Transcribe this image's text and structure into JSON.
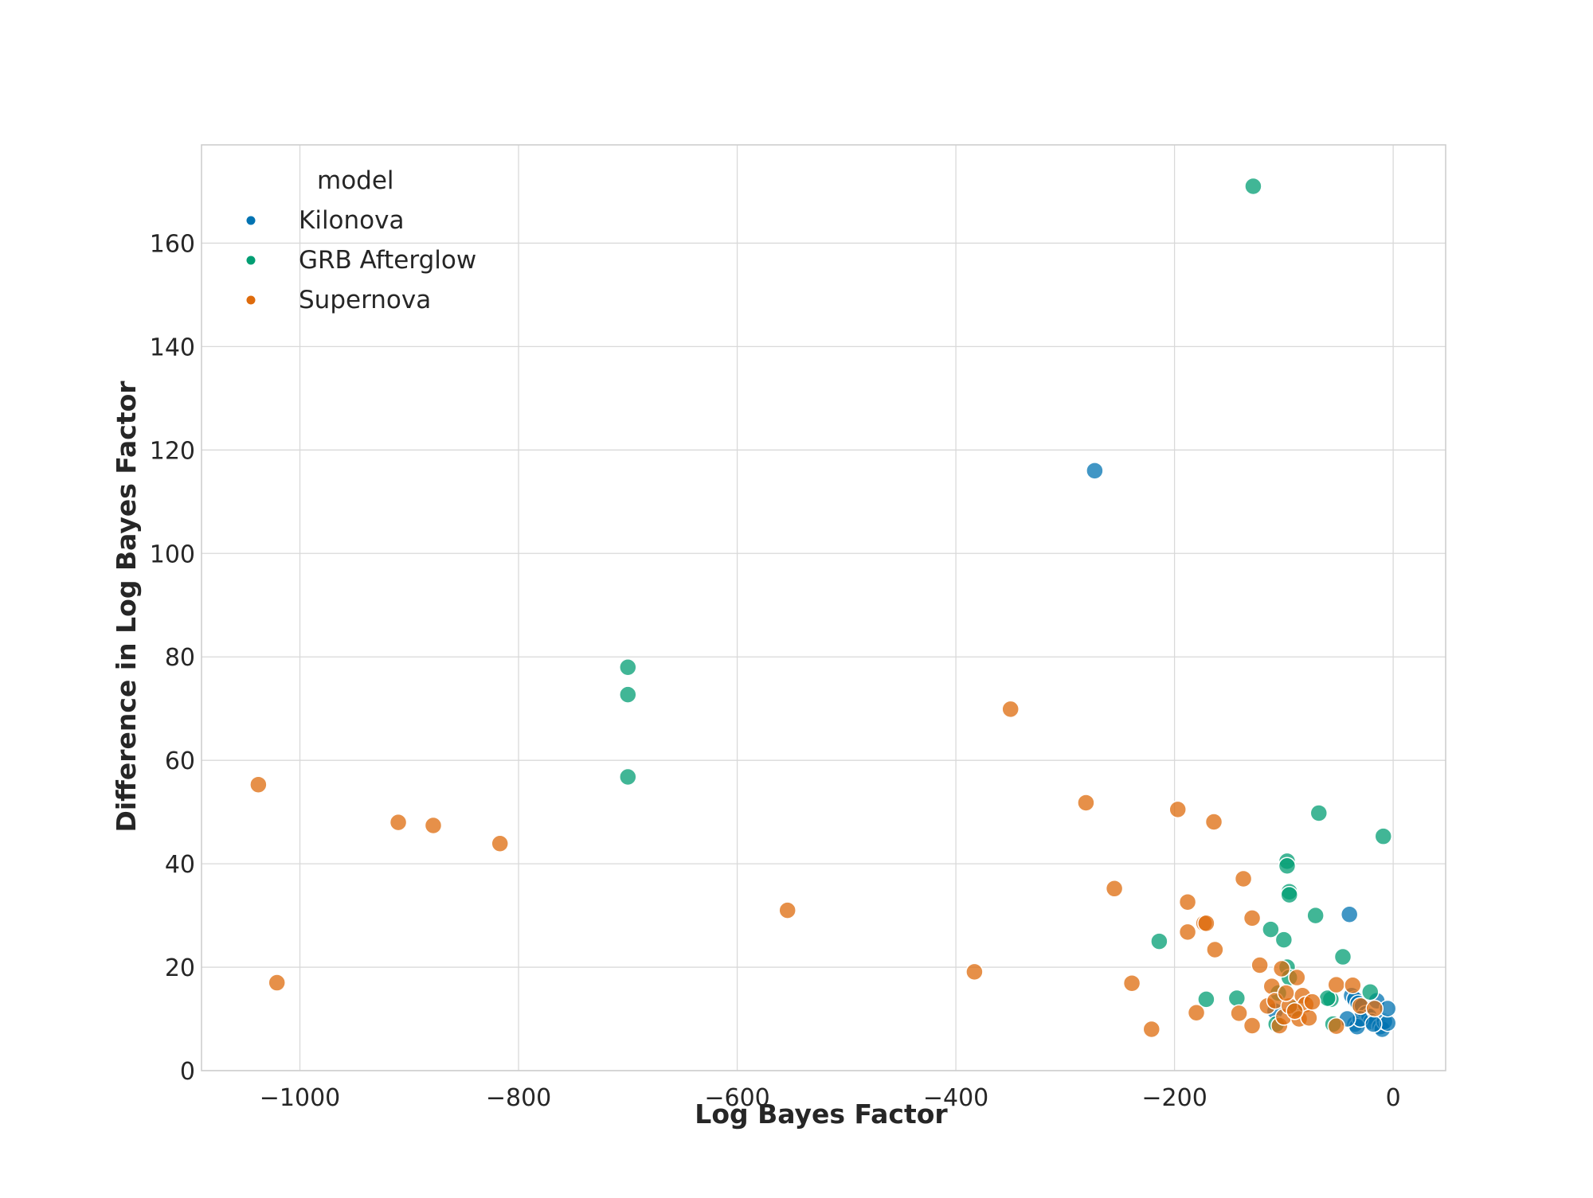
{
  "chart_data": {
    "type": "scatter",
    "title": "",
    "xlabel": "Log Bayes Factor",
    "ylabel": "Difference in Log Bayes Factor",
    "xlim": [
      -1090,
      48
    ],
    "ylim": [
      0,
      179
    ],
    "xticks": [
      -1000,
      -800,
      -600,
      -400,
      -200,
      0
    ],
    "xtick_labels": [
      "−1000",
      "−800",
      "−600",
      "−400",
      "−200",
      "0"
    ],
    "yticks": [
      0,
      20,
      40,
      60,
      80,
      100,
      120,
      140,
      160
    ],
    "ytick_labels": [
      "0",
      "20",
      "40",
      "60",
      "80",
      "100",
      "120",
      "140",
      "160"
    ],
    "grid": true,
    "legend": {
      "title": "model",
      "position": "top-left"
    },
    "series": [
      {
        "name": "Kilonova",
        "color": "#0173b2",
        "points": [
          [
            -273,
            116
          ],
          [
            -40,
            30.2
          ],
          [
            -38,
            14.5
          ],
          [
            -35,
            13.8
          ],
          [
            -32,
            13
          ],
          [
            -28,
            12.5
          ],
          [
            -25,
            11
          ],
          [
            -22,
            10.5
          ],
          [
            -20,
            9.5
          ],
          [
            -15,
            13.5
          ],
          [
            -12,
            8.5
          ],
          [
            -10,
            8
          ],
          [
            -8,
            9.5
          ],
          [
            -5,
            9.2
          ],
          [
            -5,
            12
          ],
          [
            -35,
            9
          ],
          [
            -33,
            8.5
          ],
          [
            -108,
            11.5
          ],
          [
            -30,
            10
          ],
          [
            -18,
            9
          ],
          [
            -42,
            10
          ]
        ]
      },
      {
        "name": "GRB Afterglow",
        "color": "#029e73",
        "points": [
          [
            -128,
            171
          ],
          [
            -700,
            78
          ],
          [
            -700,
            72.7
          ],
          [
            -700,
            56.8
          ],
          [
            -68,
            49.8
          ],
          [
            -9,
            45.3
          ],
          [
            -97,
            40.5
          ],
          [
            -97,
            39.6
          ],
          [
            -95,
            34.6
          ],
          [
            -95,
            34
          ],
          [
            -71,
            30
          ],
          [
            -112,
            27.3
          ],
          [
            -100,
            25.3
          ],
          [
            -214,
            25
          ],
          [
            -46,
            22
          ],
          [
            -97,
            20
          ],
          [
            -105,
            15
          ],
          [
            -57,
            13.8
          ],
          [
            -171,
            13.8
          ],
          [
            -143,
            14
          ],
          [
            -21,
            15.2
          ],
          [
            -90,
            12
          ],
          [
            -107,
            9
          ],
          [
            -55,
            9
          ],
          [
            -95,
            18
          ],
          [
            -60,
            14
          ]
        ]
      },
      {
        "name": "Supernova",
        "color": "#de6b0c",
        "points": [
          [
            -1038,
            55.3
          ],
          [
            -1021,
            17
          ],
          [
            -910,
            48
          ],
          [
            -878,
            47.4
          ],
          [
            -817,
            43.9
          ],
          [
            -554,
            31
          ],
          [
            -383,
            19.1
          ],
          [
            -350,
            69.9
          ],
          [
            -281,
            51.8
          ],
          [
            -255,
            35.2
          ],
          [
            -239,
            16.9
          ],
          [
            -221,
            8
          ],
          [
            -197,
            50.5
          ],
          [
            -188,
            32.6
          ],
          [
            -188,
            26.8
          ],
          [
            -180,
            11.2
          ],
          [
            -173,
            28.5
          ],
          [
            -171,
            28.5
          ],
          [
            -164,
            48.1
          ],
          [
            -163,
            23.4
          ],
          [
            -141,
            11.1
          ],
          [
            -137,
            37.1
          ],
          [
            -129,
            29.5
          ],
          [
            -129,
            8.7
          ],
          [
            -122,
            20.4
          ],
          [
            -115,
            12.5
          ],
          [
            -111,
            16.3
          ],
          [
            -108,
            13.5
          ],
          [
            -104,
            8.7
          ],
          [
            -102,
            19.7
          ],
          [
            -100,
            10.4
          ],
          [
            -95,
            12.5
          ],
          [
            -88,
            18
          ],
          [
            -86,
            10
          ],
          [
            -83,
            14.5
          ],
          [
            -80,
            12.8
          ],
          [
            -77,
            10.2
          ],
          [
            -74,
            13.3
          ],
          [
            -52,
            16.6
          ],
          [
            -52,
            8.6
          ],
          [
            -37,
            16.5
          ],
          [
            -30,
            12.5
          ],
          [
            -17,
            12
          ],
          [
            -98,
            15
          ],
          [
            -90,
            11.5
          ]
        ]
      }
    ]
  }
}
